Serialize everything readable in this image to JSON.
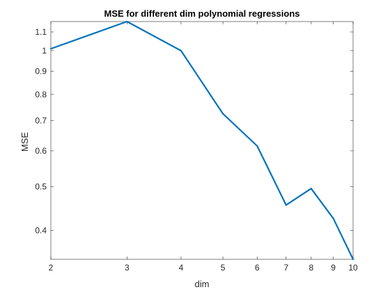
{
  "chart_data": {
    "type": "line",
    "title": "MSE for different dim polynomial regressions",
    "xlabel": "dim",
    "ylabel": "MSE",
    "x_scale": "log",
    "y_scale": "log",
    "xlim": [
      2,
      10
    ],
    "ylim": [
      0.345,
      1.16
    ],
    "x_ticks": [
      2,
      3,
      4,
      5,
      6,
      7,
      8,
      9,
      10
    ],
    "x_tick_labels": [
      "2",
      "3",
      "4",
      "5",
      "6",
      "7",
      "8",
      "9",
      "10"
    ],
    "y_ticks": [
      0.4,
      0.5,
      0.6,
      0.7,
      0.8,
      0.9,
      1.0,
      1.1
    ],
    "y_tick_labels": [
      "0.4",
      "0.5",
      "0.6",
      "0.7",
      "0.8",
      "0.9",
      "1",
      "1.1"
    ],
    "grid": false,
    "box": true,
    "series": [
      {
        "color": "#0072BD",
        "x": [
          2,
          3,
          4,
          5,
          6,
          7,
          8,
          9,
          10
        ],
        "y": [
          1.01,
          1.16,
          1.0,
          0.725,
          0.615,
          0.455,
          0.495,
          0.425,
          0.345
        ]
      }
    ]
  }
}
